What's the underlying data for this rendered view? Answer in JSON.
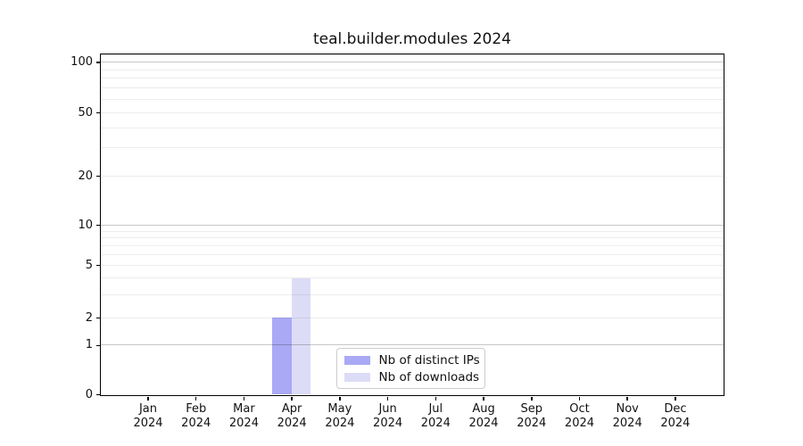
{
  "chart_data": {
    "type": "bar",
    "title": "teal.builder.modules 2024",
    "categories": [
      "Jan 2024",
      "Feb 2024",
      "Mar 2024",
      "Apr 2024",
      "May 2024",
      "Jun 2024",
      "Jul 2024",
      "Aug 2024",
      "Sep 2024",
      "Oct 2024",
      "Nov 2024",
      "Dec 2024"
    ],
    "series": [
      {
        "name": "Nb of distinct IPs",
        "color": "#a9a9f5",
        "values": [
          0,
          0,
          0,
          2,
          0,
          0,
          0,
          0,
          0,
          0,
          0,
          0
        ]
      },
      {
        "name": "Nb of downloads",
        "color": "#dcdcf7",
        "values": [
          0,
          0,
          0,
          4,
          0,
          0,
          0,
          0,
          0,
          0,
          0,
          0
        ]
      }
    ],
    "xlabel": "",
    "ylabel": "",
    "y_axis": {
      "scale": "symlog-like",
      "tick_labels": [
        "100",
        "50",
        "20",
        "10",
        "5",
        "2",
        "1",
        "0"
      ],
      "tick_values": [
        100,
        50,
        20,
        10,
        5,
        2,
        1,
        0
      ],
      "grid_dark_values": [
        1,
        10,
        100
      ],
      "grid_light_values": [
        2,
        3,
        4,
        5,
        6,
        7,
        8,
        9,
        20,
        30,
        40,
        50,
        60,
        70,
        80,
        90,
        110
      ]
    },
    "legend": {
      "position": "lower-center",
      "entries": [
        "Nb of distinct IPs",
        "Nb of downloads"
      ]
    },
    "grid": {
      "on": true
    }
  }
}
